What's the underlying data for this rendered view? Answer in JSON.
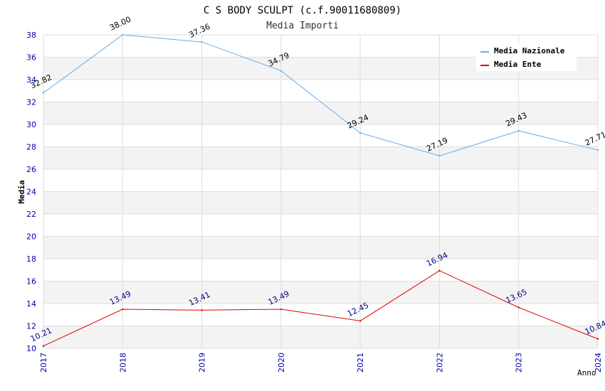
{
  "chart_data": {
    "type": "line",
    "title": "C S BODY SCULPT (c.f.90011680809)",
    "subtitle": "Media Importi",
    "xlabel": "Anno",
    "ylabel": "Media",
    "categories": [
      "2017",
      "2018",
      "2019",
      "2020",
      "2021",
      "2022",
      "2023",
      "2024"
    ],
    "ylim": [
      10,
      38
    ],
    "yticks": [
      "10",
      "12",
      "14",
      "16",
      "18",
      "20",
      "22",
      "24",
      "26",
      "28",
      "30",
      "32",
      "34",
      "36",
      "38"
    ],
    "grid": true,
    "legend_position": "top-right",
    "series": [
      {
        "name": "Media Nazionale",
        "color": "#66aaee",
        "label_color": "#000000",
        "values": [
          32.82,
          38.0,
          37.36,
          34.79,
          29.24,
          27.19,
          29.43,
          27.71
        ],
        "labels": [
          "32.82",
          "38.00",
          "37.36",
          "34.79",
          "29.24",
          "27.19",
          "29.43",
          "27.71"
        ]
      },
      {
        "name": "Media Ente",
        "color": "#dd0000",
        "label_color": "#000080",
        "values": [
          10.21,
          13.49,
          13.41,
          13.49,
          12.45,
          16.94,
          13.65,
          10.84
        ],
        "labels": [
          "10.21",
          "13.49",
          "13.41",
          "13.49",
          "12.45",
          "16.94",
          "13.65",
          "10.84"
        ]
      }
    ],
    "colors": {
      "band": "#f3f3f3",
      "gridline": "#dddddd",
      "axis_text": "#0000aa",
      "title_text": "#000000",
      "subtitle_text": "#333333"
    }
  }
}
